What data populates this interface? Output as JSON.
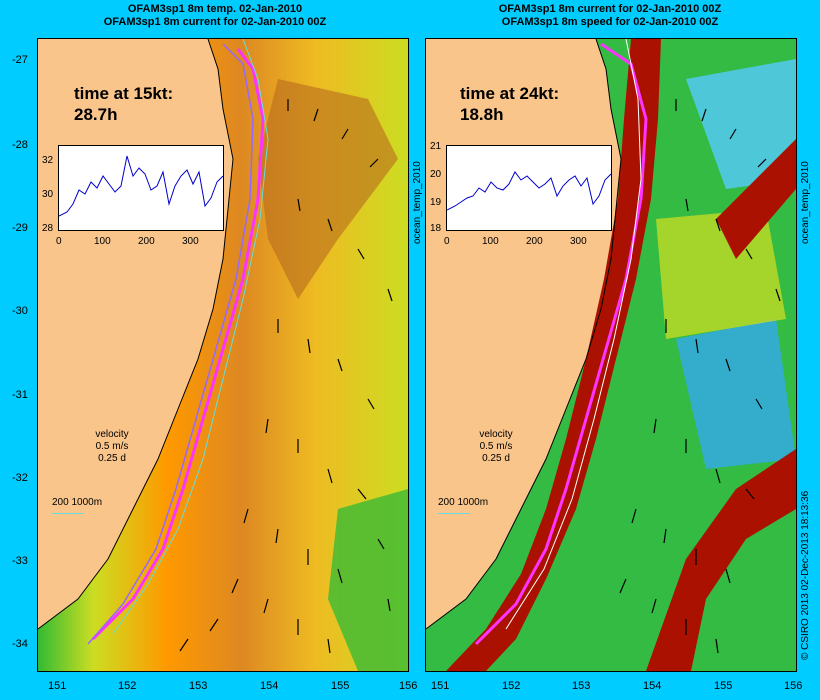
{
  "left_panel": {
    "title_line1": "OFAM3sp1 8m temp. 02-Jan-2010",
    "title_line2": "OFAM3sp1 8m current for 02-Jan-2010 00Z",
    "time_label": "time at 15kt:",
    "time_value": "28.7h",
    "inset_y_ticks": [
      "32",
      "30",
      "28"
    ],
    "inset_x_ticks": [
      "0",
      "100",
      "200",
      "300"
    ],
    "side_label": "ocean_temp_2010",
    "velocity_label": "velocity",
    "velocity_speed": "0.5 m/s",
    "velocity_time": "0.25 d",
    "depth_legend": "200  1000m"
  },
  "right_panel": {
    "title_line1": "OFAM3sp1 8m current for 02-Jan-2010 00Z",
    "title_line2": "OFAM3sp1 8m speed for 02-Jan-2010 00Z",
    "time_label": "time at 24kt:",
    "time_value": "18.8h",
    "inset_y_ticks": [
      "21",
      "20",
      "19",
      "18"
    ],
    "inset_x_ticks": [
      "0",
      "100",
      "200",
      "300"
    ],
    "side_label": "ocean_temp_2010",
    "velocity_label": "velocity",
    "velocity_speed": "0.5 m/s",
    "velocity_time": "0.25 d",
    "depth_legend": "200  1000m"
  },
  "lat_ticks": [
    "-27",
    "-28",
    "-29",
    "-30",
    "-31",
    "-32",
    "-33",
    "-34"
  ],
  "lon_ticks": [
    "151",
    "152",
    "153",
    "154",
    "155",
    "156"
  ],
  "credit": "© CSIRO 2013  02-Dec-2013 18:13:36",
  "colors": {
    "background": "#00ccff",
    "land": "#f9c58b",
    "route": "#ff33ff",
    "trace": "#0000cc"
  }
}
